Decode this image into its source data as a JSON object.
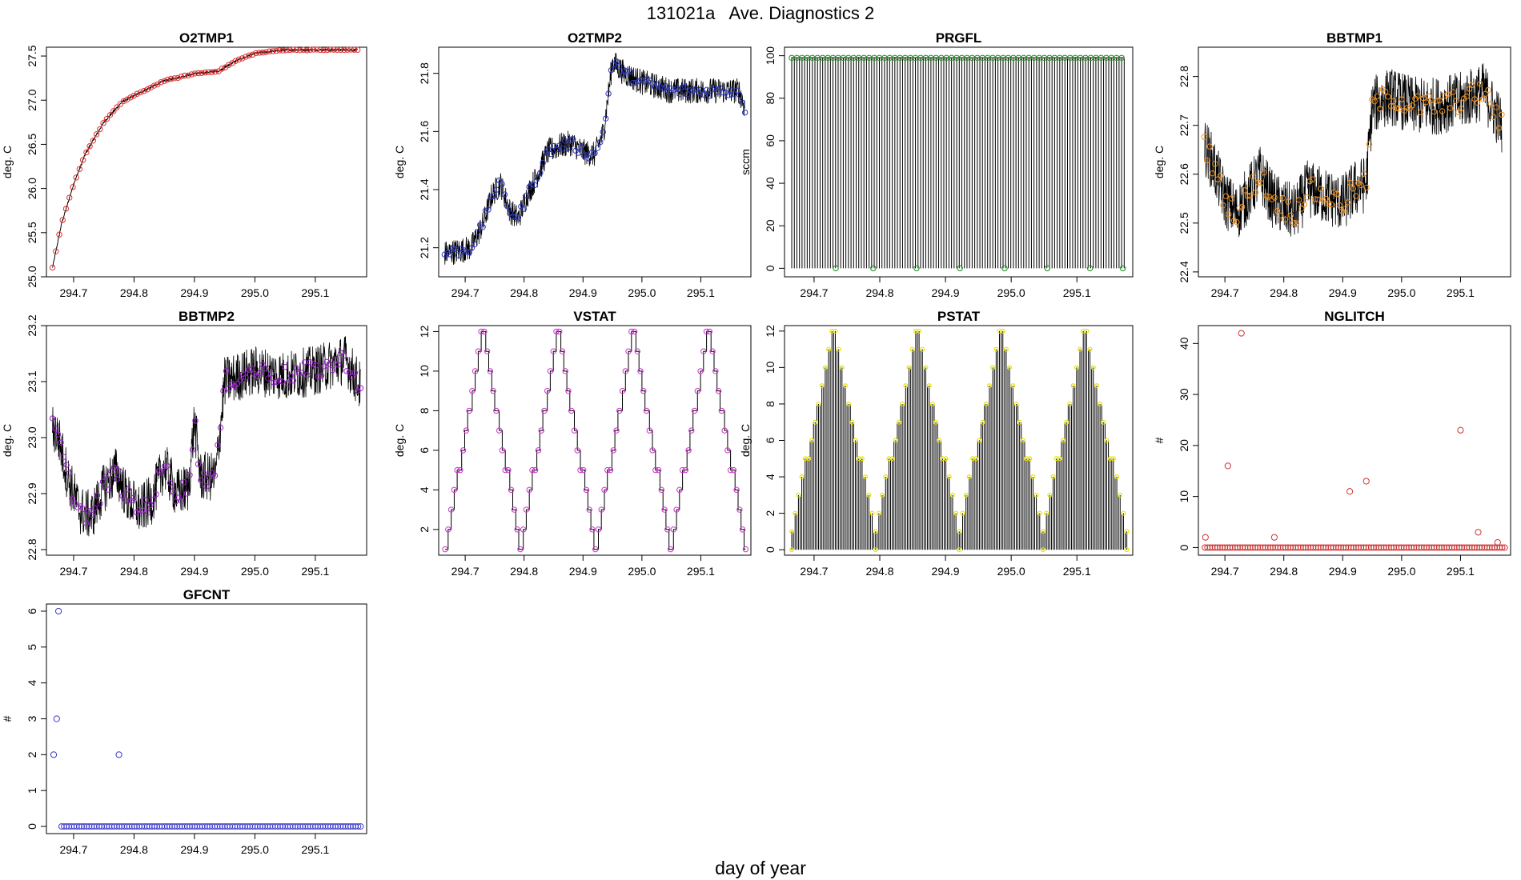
{
  "figure": {
    "title": "131021a   Ave. Diagnostics 2",
    "xlabel": "day of year",
    "xticks": [
      294.7,
      294.8,
      294.9,
      295.0,
      295.1
    ],
    "xtick_labels": [
      "294.7",
      "294.8",
      "294.9",
      "295.0",
      "295.1"
    ],
    "xlim": [
      294.655,
      295.185
    ]
  },
  "chart_data": [
    {
      "id": "o2tmp1",
      "type": "line",
      "title": "O2TMP1",
      "ylabel": "deg. C",
      "ylim": [
        25.0,
        27.6
      ],
      "yticks": [
        25.0,
        25.5,
        26.0,
        26.5,
        27.0,
        27.5
      ],
      "ytick_labels": [
        "25.0",
        "25.5",
        "26.0",
        "26.5",
        "27.0",
        "27.5"
      ],
      "marker_color": "#e03030",
      "style": "smooth",
      "x": [
        294.665,
        294.68,
        294.7,
        294.72,
        294.75,
        294.78,
        294.8,
        294.85,
        294.9,
        294.94,
        294.97,
        295.0,
        295.05,
        295.1,
        295.17
      ],
      "values": [
        25.1,
        25.6,
        26.05,
        26.4,
        26.75,
        26.98,
        27.05,
        27.22,
        27.3,
        27.33,
        27.45,
        27.53,
        27.57,
        27.57,
        27.57
      ],
      "noise": 0.012
    },
    {
      "id": "o2tmp2",
      "type": "line",
      "title": "O2TMP2",
      "ylabel": "deg. C",
      "ylim": [
        21.1,
        21.89
      ],
      "yticks": [
        21.2,
        21.4,
        21.6,
        21.8
      ],
      "ytick_labels": [
        "21.2",
        "21.4",
        "21.6",
        "21.8"
      ],
      "marker_color": "#2a36b8",
      "style": "noisy",
      "x": [
        294.665,
        294.69,
        294.71,
        294.73,
        294.745,
        294.76,
        294.775,
        294.79,
        294.805,
        294.82,
        294.84,
        294.86,
        294.88,
        294.9,
        294.92,
        294.935,
        294.95,
        294.97,
        295.0,
        295.05,
        295.1,
        295.15,
        295.165,
        295.175
      ],
      "values": [
        21.18,
        21.19,
        21.2,
        21.28,
        21.38,
        21.42,
        21.33,
        21.3,
        21.38,
        21.44,
        21.53,
        21.55,
        21.56,
        21.53,
        21.52,
        21.6,
        21.84,
        21.8,
        21.77,
        21.74,
        21.74,
        21.74,
        21.74,
        21.68
      ],
      "noise": 0.045
    },
    {
      "id": "prgfl",
      "type": "spikes",
      "title": "PRGFL",
      "ylabel": "sccm",
      "ylim": [
        -4,
        104
      ],
      "yticks": [
        0,
        20,
        40,
        60,
        80,
        100
      ],
      "ytick_labels": [
        "0",
        "20",
        "40",
        "60",
        "80",
        "100"
      ],
      "marker_color": "#1e8a1e",
      "x_start": 294.666,
      "x_end": 295.172,
      "n": 130,
      "high": 99,
      "low": 0,
      "low_markers_x": [
        294.733,
        294.79,
        294.856,
        294.922,
        294.99,
        295.055,
        295.12,
        295.17
      ]
    },
    {
      "id": "bbtmp1",
      "type": "line",
      "title": "BBTMP1",
      "ylabel": "deg. C",
      "ylim": [
        22.39,
        22.86
      ],
      "yticks": [
        22.4,
        22.5,
        22.6,
        22.7,
        22.8
      ],
      "ytick_labels": [
        "22.4",
        "22.5",
        "22.6",
        "22.7",
        "22.8"
      ],
      "marker_color": "#f09020",
      "style": "noisy",
      "x": [
        294.665,
        294.68,
        294.7,
        294.72,
        294.74,
        294.76,
        294.78,
        294.8,
        294.82,
        294.84,
        294.86,
        294.88,
        294.9,
        294.92,
        294.94,
        294.95,
        294.98,
        295.02,
        295.06,
        295.1,
        295.14,
        295.17
      ],
      "values": [
        22.66,
        22.62,
        22.55,
        22.52,
        22.56,
        22.6,
        22.55,
        22.53,
        22.52,
        22.57,
        22.56,
        22.55,
        22.54,
        22.57,
        22.58,
        22.74,
        22.76,
        22.74,
        22.74,
        22.75,
        22.77,
        22.7
      ],
      "noise": 0.06
    },
    {
      "id": "bbtmp2",
      "type": "line",
      "title": "BBTMP2",
      "ylabel": "deg. C",
      "ylim": [
        22.79,
        23.2
      ],
      "yticks": [
        22.8,
        22.9,
        23.0,
        23.1,
        23.2
      ],
      "ytick_labels": [
        "22.8",
        "22.9",
        "23.0",
        "23.1",
        "23.2"
      ],
      "marker_color": "#9b20d0",
      "style": "noisy",
      "x": [
        294.665,
        294.675,
        294.69,
        294.71,
        294.73,
        294.75,
        294.77,
        294.79,
        294.81,
        294.83,
        294.85,
        294.87,
        294.89,
        294.9,
        294.91,
        294.935,
        294.95,
        295.0,
        295.05,
        295.1,
        295.15,
        295.175
      ],
      "values": [
        23.02,
        23.0,
        22.93,
        22.87,
        22.86,
        22.91,
        22.94,
        22.89,
        22.87,
        22.89,
        22.95,
        22.9,
        22.91,
        23.03,
        22.93,
        22.93,
        23.1,
        23.12,
        23.11,
        23.12,
        23.14,
        23.09
      ],
      "noise": 0.045
    },
    {
      "id": "vstat",
      "type": "step",
      "title": "VSTAT",
      "ylabel": "deg. C",
      "ylim": [
        0.7,
        12.3
      ],
      "yticks": [
        2,
        4,
        6,
        8,
        10,
        12
      ],
      "ytick_labels": [
        "2",
        "4",
        "6",
        "8",
        "10",
        "12"
      ],
      "marker_color": "#cc33cc",
      "x_start": 294.666,
      "x_end": 295.176,
      "cycles": 4
    },
    {
      "id": "pstat",
      "type": "spikes_step",
      "title": "PSTAT",
      "ylabel": "deg. C",
      "ylim": [
        -0.3,
        12.3
      ],
      "yticks": [
        0,
        2,
        4,
        6,
        8,
        10,
        12
      ],
      "ytick_labels": [
        "0",
        "2",
        "4",
        "6",
        "8",
        "10",
        "12"
      ],
      "marker_color": "#e8e000",
      "x_start": 294.666,
      "x_end": 295.176,
      "cycles": 4
    },
    {
      "id": "nglitch",
      "type": "scatter",
      "title": "NGLITCH",
      "ylabel": "#",
      "ylim": [
        -1.5,
        43.5
      ],
      "yticks": [
        0,
        10,
        20,
        30,
        40
      ],
      "ytick_labels": [
        "0",
        "10",
        "20",
        "30",
        "40"
      ],
      "marker_color": "#cc3333",
      "x_start": 294.666,
      "x_end": 295.175,
      "n": 120,
      "baseline": 0,
      "points_x": [
        294.667,
        294.705,
        294.728,
        294.784,
        294.912,
        294.94,
        295.1,
        295.13,
        295.163
      ],
      "points_y": [
        2,
        16,
        42,
        2,
        11,
        13,
        23,
        3,
        1
      ]
    },
    {
      "id": "gfcnt",
      "type": "scatter",
      "title": "GFCNT",
      "ylabel": "#",
      "ylim": [
        -0.2,
        6.2
      ],
      "yticks": [
        0,
        1,
        2,
        3,
        4,
        5,
        6
      ],
      "ytick_labels": [
        "0",
        "1",
        "2",
        "3",
        "4",
        "5",
        "6"
      ],
      "marker_color": "#3a3ac8",
      "x_start": 294.68,
      "x_end": 295.175,
      "n": 120,
      "baseline": 0,
      "points_x": [
        294.667,
        294.672,
        294.675,
        294.775
      ],
      "points_y": [
        2,
        3,
        6,
        2
      ]
    }
  ]
}
